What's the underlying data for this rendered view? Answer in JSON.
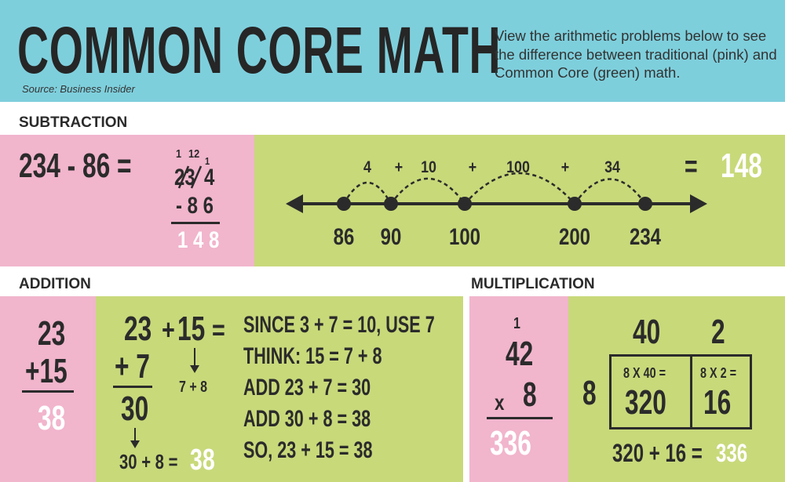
{
  "header": {
    "title": "COMMON CORE MATH",
    "source": "Source: Business Insider",
    "intro": "View the arithmetic problems below to see the difference between traditional (pink) and Common Core (green) math."
  },
  "subtraction": {
    "label": "SUBTRACTION",
    "equation": "234 - 86 =",
    "borrow_1": "1",
    "borrow_12": "12",
    "borrow_1b": "1",
    "top_strike": "23",
    "top_tail": "4",
    "bottom": "- 8 6",
    "result": "1 4 8",
    "jumps": [
      "4",
      "+",
      "10",
      "+",
      "100",
      "+",
      "34"
    ],
    "points": [
      {
        "label": "86",
        "value": 86
      },
      {
        "label": "90",
        "value": 90
      },
      {
        "label": "100",
        "value": 100
      },
      {
        "label": "200",
        "value": 200
      },
      {
        "label": "234",
        "value": 234
      }
    ],
    "equals": "=",
    "answer": "148"
  },
  "addition": {
    "label": "ADDITION",
    "trad_top": "23",
    "trad_bottom": "+15",
    "trad_result": "38",
    "cc_eq_a": "23",
    "cc_eq_plus": "+",
    "cc_eq_b": "15",
    "cc_eq_equals": "=",
    "cc_plus7": "+ 7",
    "cc_30": "30",
    "cc_split": "7 + 8",
    "cc_final": "30 + 8 =",
    "cc_final_answer": "38",
    "steps": [
      "SINCE 3 + 7 = 10, USE 7",
      "THINK: 15 = 7 + 8",
      "ADD 23 + 7 = 30",
      "ADD 30 + 8 = 38",
      "SO, 23 + 15 = 38"
    ]
  },
  "multiplication": {
    "label": "MULTIPLICATION",
    "carry": "1",
    "trad_top": "42",
    "trad_x": "x",
    "trad_bottom": "8",
    "trad_result": "336",
    "col_40": "40",
    "col_2": "2",
    "row_8": "8",
    "cell1_label": "8 X 40 =",
    "cell1_value": "320",
    "cell2_label": "8 X 2 =",
    "cell2_value": "16",
    "sum": "320 + 16 =",
    "sum_answer": "336"
  },
  "colors": {
    "header": "#7ecfdc",
    "pink": "#f1b5cc",
    "green": "#c8d97a",
    "text": "#2b2b2b"
  }
}
